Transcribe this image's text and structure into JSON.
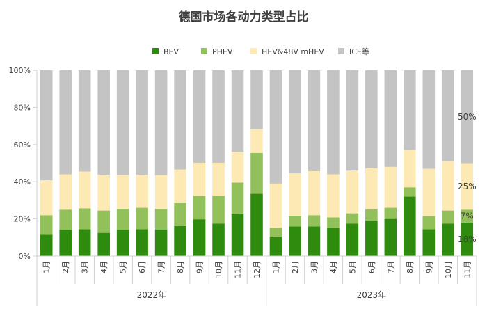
{
  "chart_data": {
    "type": "bar",
    "stacked": true,
    "percent": true,
    "title": "德国市场各动力类型占比",
    "legend_position": "top",
    "ylim": [
      0,
      100
    ],
    "yticks": [
      "0%",
      "20%",
      "40%",
      "60%",
      "80%",
      "100%"
    ],
    "grid": false,
    "groups": [
      {
        "label": "2022年",
        "count": 12
      },
      {
        "label": "2023年",
        "count": 11
      }
    ],
    "categories": [
      "1月",
      "2月",
      "3月",
      "4月",
      "5月",
      "6月",
      "7月",
      "8月",
      "9月",
      "10月",
      "11月",
      "12月",
      "1月",
      "2月",
      "3月",
      "4月",
      "5月",
      "6月",
      "7月",
      "8月",
      "9月",
      "10月",
      "11月"
    ],
    "series": [
      {
        "name": "BEV",
        "color": "#2e8b0e",
        "values": [
          11.5,
          14.2,
          14.5,
          12.5,
          14.2,
          14.5,
          14.2,
          16.2,
          19.8,
          17.5,
          22.5,
          33.5,
          10.2,
          16.0,
          16.0,
          15.0,
          17.5,
          19.2,
          20.0,
          32.0,
          14.5,
          17.5,
          18.0
        ]
      },
      {
        "name": "PHEV",
        "color": "#92c05a",
        "values": [
          10.5,
          10.8,
          11.2,
          12.0,
          11.2,
          11.5,
          11.2,
          12.3,
          12.7,
          15.0,
          17.0,
          22.0,
          5.0,
          5.7,
          6.0,
          5.8,
          5.5,
          6.0,
          6.0,
          5.0,
          7.0,
          7.0,
          7.0
        ]
      },
      {
        "name": "HEV&48V mHEV",
        "color": "#fce9b4",
        "values": [
          18.8,
          19.0,
          19.8,
          19.3,
          18.3,
          17.8,
          18.1,
          18.1,
          17.7,
          17.7,
          16.6,
          13.0,
          23.8,
          22.8,
          23.7,
          23.2,
          23.0,
          22.0,
          22.0,
          20.0,
          25.5,
          26.5,
          25.0
        ]
      },
      {
        "name": "ICE等",
        "color": "#c4c4c4",
        "values": [
          59.2,
          56.0,
          54.5,
          56.2,
          56.3,
          56.2,
          56.5,
          53.4,
          49.8,
          49.8,
          43.9,
          31.5,
          61.0,
          55.5,
          54.3,
          56.0,
          54.0,
          52.8,
          52.0,
          43.0,
          53.0,
          49.0,
          50.0
        ]
      }
    ],
    "annotations": [
      "50%",
      "25%",
      "7%",
      "18%"
    ]
  }
}
